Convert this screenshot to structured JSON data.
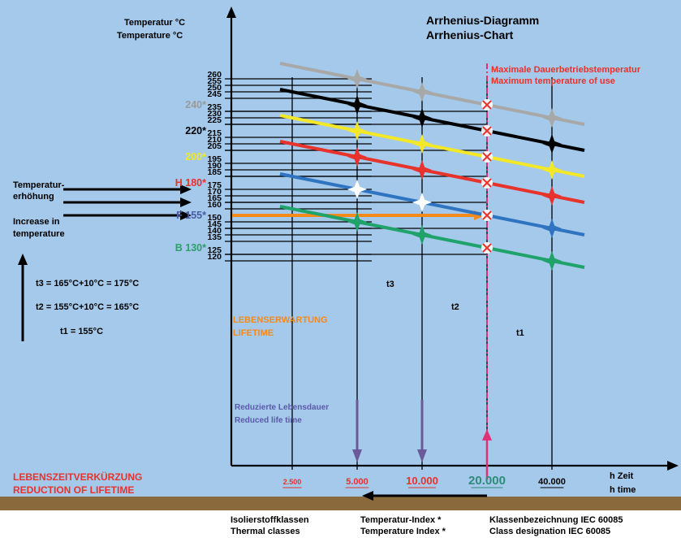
{
  "chart_data": {
    "type": "line",
    "title_de": "Arrhenius-Diagramm",
    "title_en": "Arrhenius-Chart",
    "ylabel_de": "Temperatur °C",
    "ylabel_en": "Temperature °C",
    "xlabel_de": "h Zeit",
    "xlabel_en": "h time",
    "x_ticks": [
      {
        "label": "2.500",
        "value": 2500,
        "color": "#e8322c"
      },
      {
        "label": "5.000",
        "value": 5000,
        "color": "#e8322c"
      },
      {
        "label": "10.000",
        "value": 10000,
        "color": "#e8322c"
      },
      {
        "label": "20.000",
        "value": 20000,
        "color": "#2e8b78"
      },
      {
        "label": "40.000",
        "value": 40000,
        "color": "#000000"
      }
    ],
    "y_ticks": [
      260,
      255,
      250,
      245,
      235,
      230,
      225,
      215,
      210,
      205,
      195,
      190,
      185,
      175,
      170,
      165,
      160,
      150,
      145,
      140,
      135,
      125,
      120
    ],
    "thermal_classes": [
      {
        "label": "240*",
        "value": 240,
        "color": "#9a9a9a"
      },
      {
        "label": "220*",
        "value": 220,
        "color": "#000000"
      },
      {
        "label": "200*",
        "value": 200,
        "color": "#f2e829"
      },
      {
        "label": "H 180*",
        "value": 180,
        "color": "#e8322c"
      },
      {
        "label": "F 155*",
        "value": 155,
        "color": "#4a5aa8"
      },
      {
        "label": "B 130*",
        "value": 130,
        "color": "#2e9e6a"
      }
    ],
    "series": [
      {
        "name": "240*",
        "color": "#a8a8a8",
        "points": [
          [
            5000,
            260
          ],
          [
            10000,
            250
          ],
          [
            20000,
            240
          ],
          [
            40000,
            230
          ]
        ]
      },
      {
        "name": "220*",
        "color": "#000000",
        "points": [
          [
            5000,
            240
          ],
          [
            10000,
            230
          ],
          [
            20000,
            220
          ],
          [
            40000,
            210
          ]
        ]
      },
      {
        "name": "200*",
        "color": "#f2e829",
        "points": [
          [
            5000,
            220
          ],
          [
            10000,
            210
          ],
          [
            20000,
            200
          ],
          [
            40000,
            190
          ]
        ]
      },
      {
        "name": "H 180*",
        "color": "#e8322c",
        "points": [
          [
            5000,
            200
          ],
          [
            10000,
            190
          ],
          [
            20000,
            180
          ],
          [
            40000,
            170
          ]
        ]
      },
      {
        "name": "F 155*",
        "color": "#2f74c0",
        "points": [
          [
            5000,
            175
          ],
          [
            10000,
            165
          ],
          [
            20000,
            155
          ],
          [
            40000,
            145
          ]
        ]
      },
      {
        "name": "B 130*",
        "color": "#1fa36a",
        "points": [
          [
            5000,
            150
          ],
          [
            10000,
            140
          ],
          [
            20000,
            130
          ],
          [
            40000,
            120
          ]
        ]
      }
    ],
    "annotations": {
      "max_temp_de": "Maximale Dauerbetriebstemperatur",
      "max_temp_en": "Maximum temperature of use",
      "lifetime_de": "LEBENSERWARTUNG",
      "lifetime_en": "LIFETIME",
      "reduced_de": "Reduzierte Lebensdauer",
      "reduced_en": "Reduced life time",
      "t1": "t1",
      "t2": "t2",
      "t3": "t3",
      "increase_de_1": "Temperatur-",
      "increase_de_2": "erhöhung",
      "increase_en_1": "Increase in",
      "increase_en_2": "temperature",
      "t3_eq": "t3 = 165°C+10°C = 175°C",
      "t2_eq": "t2 = 155°C+10°C = 165°C",
      "t1_eq": "t1 = 155°C",
      "reduction_de": "LEBENSZEITVERKÜRZUNG",
      "reduction_en": "REDUCTION OF LIFETIME"
    },
    "footer": {
      "col1_de": "Isolierstoffklassen",
      "col1_en": "Thermal classes",
      "col2_de": "Temperatur-Index *",
      "col2_en": "Temperature Index *",
      "col3_de": "Klassenbezeichnung IEC 60085",
      "col3_en": "Class designation IEC 60085"
    },
    "colors": {
      "background": "#a4c9ea",
      "ground": "#8a6a3c",
      "lifetime_arrow": "#f28a1c",
      "reduced_arrow": "#6a5a9a",
      "max_temp_line": "#e0307a"
    }
  }
}
